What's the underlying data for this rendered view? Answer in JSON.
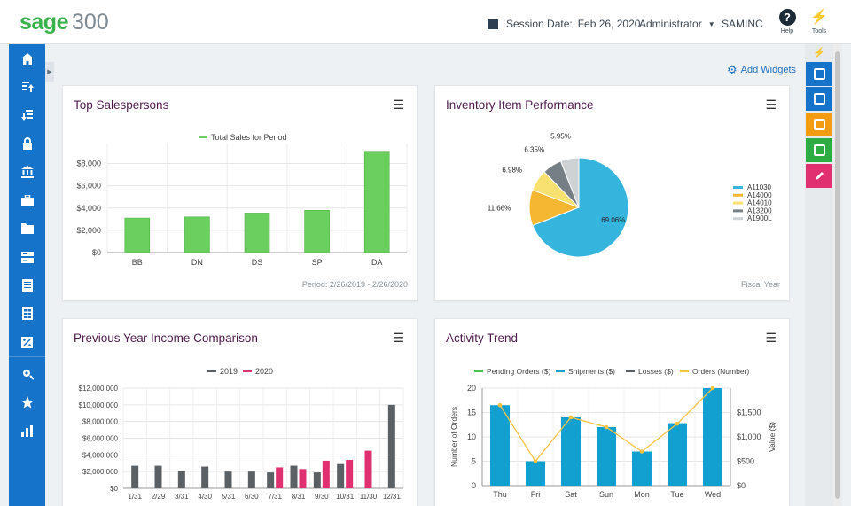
{
  "header": {
    "brand_name": "sage",
    "brand_version": "300",
    "session_label": "Session Date:",
    "session_date": "Feb 26, 2020",
    "user": "Administrator",
    "company": "SAMINC",
    "help_label": "Help",
    "tools_label": "Tools"
  },
  "sidebar": {
    "items": [
      "home",
      "accounts-payable",
      "accounts-receivable",
      "security",
      "bank",
      "briefcase",
      "folder",
      "server",
      "document",
      "spreadsheet",
      "percent",
      "settings",
      "favorites",
      "reports"
    ]
  },
  "toolbar": {
    "add_widgets": "Add Widgets"
  },
  "right_strip": {
    "items": [
      {
        "name": "screen",
        "color": "#1573c9"
      },
      {
        "name": "screen-settings",
        "color": "#1573c9"
      },
      {
        "name": "excel-export",
        "color": "#f39c12"
      },
      {
        "name": "spreadsheet-export",
        "color": "#2eac44"
      },
      {
        "name": "edit",
        "color": "#e0306f"
      }
    ]
  },
  "widgets": {
    "top_sales": {
      "title": "Top Salespersons",
      "footer": "Period: 2/26/2019 - 2/26/2020"
    },
    "inventory": {
      "title": "Inventory Item Performance",
      "footer": "Fiscal Year"
    },
    "income": {
      "title": "Previous Year Income Comparison"
    },
    "activity": {
      "title": "Activity Trend"
    }
  },
  "chart_data": [
    {
      "id": "top_sales",
      "type": "bar",
      "categories": [
        "BB",
        "DN",
        "DS",
        "SP",
        "DA"
      ],
      "series": [
        {
          "name": "Total Sales for Period",
          "values": [
            3100,
            3200,
            3550,
            3800,
            9100
          ],
          "color": "#6acf5e"
        }
      ],
      "ylim": [
        0,
        9000
      ],
      "yticks": [
        0,
        2000,
        4000,
        6000,
        8000
      ],
      "ytick_labels": [
        "$0",
        "$2,000",
        "$4,000",
        "$6,000",
        "$8,000"
      ],
      "legend": "top"
    },
    {
      "id": "inventory",
      "type": "pie",
      "slices": [
        {
          "name": "A11030",
          "value": 69.06,
          "label": "69.06%",
          "color": "#35b4dd"
        },
        {
          "name": "A14000",
          "value": 11.66,
          "label": "11.66%",
          "color": "#f5b731"
        },
        {
          "name": "A14010",
          "value": 6.98,
          "label": "6.98%",
          "color": "#f8e071"
        },
        {
          "name": "A13200",
          "value": 6.35,
          "label": "6.35%",
          "color": "#767f86"
        },
        {
          "name": "A1900L",
          "value": 5.95,
          "label": "5.95%",
          "color": "#cfd2d4"
        }
      ],
      "legend": "right"
    },
    {
      "id": "income",
      "type": "bar",
      "categories": [
        "1/31",
        "2/29",
        "3/31",
        "4/30",
        "5/31",
        "6/30",
        "7/31",
        "8/31",
        "9/30",
        "10/31",
        "11/30",
        "12/31"
      ],
      "series": [
        {
          "name": "2019",
          "color": "#5b6065",
          "values": [
            2700000,
            2700000,
            2100000,
            2600000,
            2000000,
            2000000,
            1900000,
            2700000,
            1900000,
            2900000,
            null,
            10000000
          ]
        },
        {
          "name": "2020",
          "color": "#e0306f",
          "values": [
            null,
            null,
            null,
            null,
            null,
            null,
            2500000,
            2300000,
            3300000,
            3400000,
            4500000,
            null
          ]
        }
      ],
      "ylim": [
        0,
        12000000
      ],
      "yticks": [
        0,
        2000000,
        4000000,
        6000000,
        8000000,
        10000000,
        12000000
      ],
      "ytick_labels": [
        "$0",
        "$2,000,000",
        "$4,000,000",
        "$6,000,000",
        "$8,000,000",
        "$10,000,000",
        "$12,000,000"
      ],
      "legend": "top"
    },
    {
      "id": "activity",
      "type": "bar",
      "categories": [
        "Thu",
        "Fri",
        "Sat",
        "Sun",
        "Mon",
        "Tue",
        "Wed"
      ],
      "series": [
        {
          "name": "Pending Orders ($)",
          "color": "#49c44a",
          "values": [
            0,
            0,
            0,
            0,
            0,
            0,
            0
          ]
        },
        {
          "name": "Shipments ($)",
          "color": "#12a0d1",
          "values": [
            1650,
            500,
            1400,
            1200,
            700,
            1280,
            2000
          ],
          "axis": "right"
        },
        {
          "name": "Losses ($)",
          "color": "#5b6065",
          "values": [
            0,
            0,
            0,
            0,
            0,
            0,
            0
          ]
        },
        {
          "name": "Orders (Number)",
          "color": "#f5c242",
          "values": [
            16.5,
            5,
            14,
            12,
            7,
            12.7,
            20
          ],
          "axis": "left",
          "kind": "line"
        }
      ],
      "ylabel": "Number of Orders",
      "ylim": [
        0,
        20
      ],
      "yticks": [
        0,
        5,
        10,
        15,
        20
      ],
      "ytick_labels": [
        "0",
        "5",
        "10",
        "15",
        "20"
      ],
      "y2label": "Value ($)",
      "y2lim": [
        0,
        2000
      ],
      "y2ticks": [
        0,
        500,
        1000,
        1500
      ],
      "y2tick_labels": [
        "$0",
        "$500",
        "$1,000",
        "$1,500"
      ],
      "legend": "top"
    }
  ]
}
